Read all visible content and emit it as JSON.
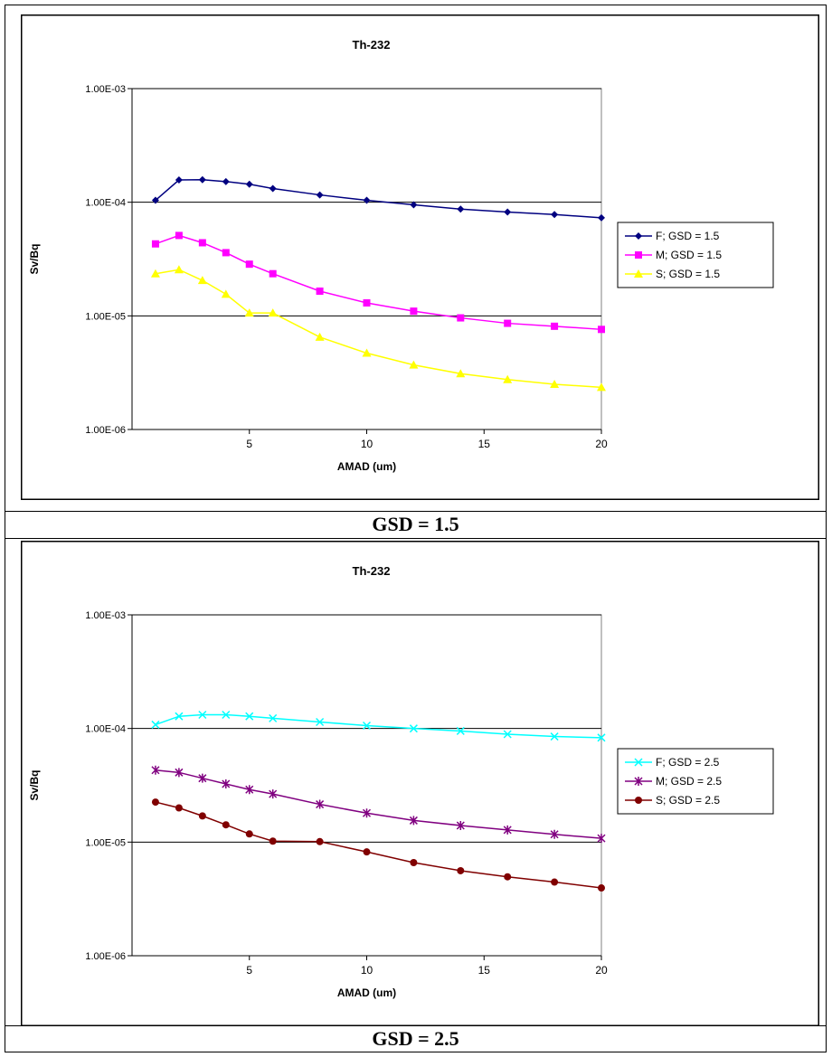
{
  "captions": [
    "GSD = 1.5",
    "GSD = 2.5"
  ],
  "chart_data": [
    {
      "type": "line",
      "title": "Th-232",
      "xlabel": "AMAD (um)",
      "ylabel": "Sv/Bq",
      "xlim": [
        0,
        20
      ],
      "ylim": [
        1e-06,
        0.001
      ],
      "yscale": "log",
      "x_ticks": [
        5,
        10,
        15,
        20
      ],
      "y_ticks": [
        "1.00E-03",
        "1.00E-04",
        "1.00E-05",
        "1.00E-06"
      ],
      "y_tick_values": [
        0.001,
        0.0001,
        1e-05,
        1e-06
      ],
      "gridlines": "horizontal",
      "legend": "right",
      "x": [
        1,
        2,
        3,
        4,
        5,
        6,
        8,
        10,
        12,
        14,
        16,
        18,
        20
      ],
      "series": [
        {
          "name": "F; GSD = 1.5",
          "color": "#000080",
          "marker": "diamond",
          "values": [
            0.000104,
            0.000157,
            0.000158,
            0.000152,
            0.000144,
            0.000132,
            0.000116,
            0.000104,
            9.5e-05,
            8.7e-05,
            8.2e-05,
            7.8e-05,
            7.3e-05
          ]
        },
        {
          "name": "M; GSD = 1.5",
          "color": "#ff00ff",
          "marker": "square",
          "values": [
            4.3e-05,
            5.1e-05,
            4.4e-05,
            3.6e-05,
            2.85e-05,
            2.35e-05,
            1.65e-05,
            1.3e-05,
            1.1e-05,
            9.6e-06,
            8.6e-06,
            8.1e-06,
            7.6e-06
          ]
        },
        {
          "name": "S; GSD = 1.5",
          "color": "#ffff00",
          "marker": "triangle",
          "values": [
            2.35e-05,
            2.55e-05,
            2.05e-05,
            1.55e-05,
            1.06e-05,
            1.06e-05,
            6.5e-06,
            4.7e-06,
            3.7e-06,
            3.1e-06,
            2.75e-06,
            2.5e-06,
            2.35e-06
          ]
        }
      ]
    },
    {
      "type": "line",
      "title": "Th-232",
      "xlabel": "AMAD (um)",
      "ylabel": "Sv/Bq",
      "xlim": [
        0,
        20
      ],
      "ylim": [
        1e-06,
        0.001
      ],
      "yscale": "log",
      "x_ticks": [
        5,
        10,
        15,
        20
      ],
      "y_ticks": [
        "1.00E-03",
        "1.00E-04",
        "1.00E-05",
        "1.00E-06"
      ],
      "y_tick_values": [
        0.001,
        0.0001,
        1e-05,
        1e-06
      ],
      "gridlines": "horizontal",
      "legend": "right",
      "x": [
        1,
        2,
        3,
        4,
        5,
        6,
        8,
        10,
        12,
        14,
        16,
        18,
        20
      ],
      "series": [
        {
          "name": "F; GSD = 2.5",
          "color": "#00ffff",
          "marker": "x",
          "values": [
            0.000108,
            0.000128,
            0.000132,
            0.000132,
            0.000128,
            0.000123,
            0.000114,
            0.000106,
            0.0001,
            9.5e-05,
            8.9e-05,
            8.5e-05,
            8.3e-05
          ]
        },
        {
          "name": "M; GSD = 2.5",
          "color": "#800080",
          "marker": "star",
          "values": [
            4.3e-05,
            4.1e-05,
            3.65e-05,
            3.25e-05,
            2.9e-05,
            2.65e-05,
            2.15e-05,
            1.8e-05,
            1.55e-05,
            1.4e-05,
            1.28e-05,
            1.17e-05,
            1.08e-05
          ]
        },
        {
          "name": "S; GSD = 2.5",
          "color": "#800000",
          "marker": "circle",
          "values": [
            2.25e-05,
            2e-05,
            1.7e-05,
            1.42e-05,
            1.18e-05,
            1.02e-05,
            1.01e-05,
            8.2e-06,
            6.6e-06,
            5.6e-06,
            4.95e-06,
            4.45e-06,
            3.95e-06
          ]
        }
      ]
    }
  ]
}
